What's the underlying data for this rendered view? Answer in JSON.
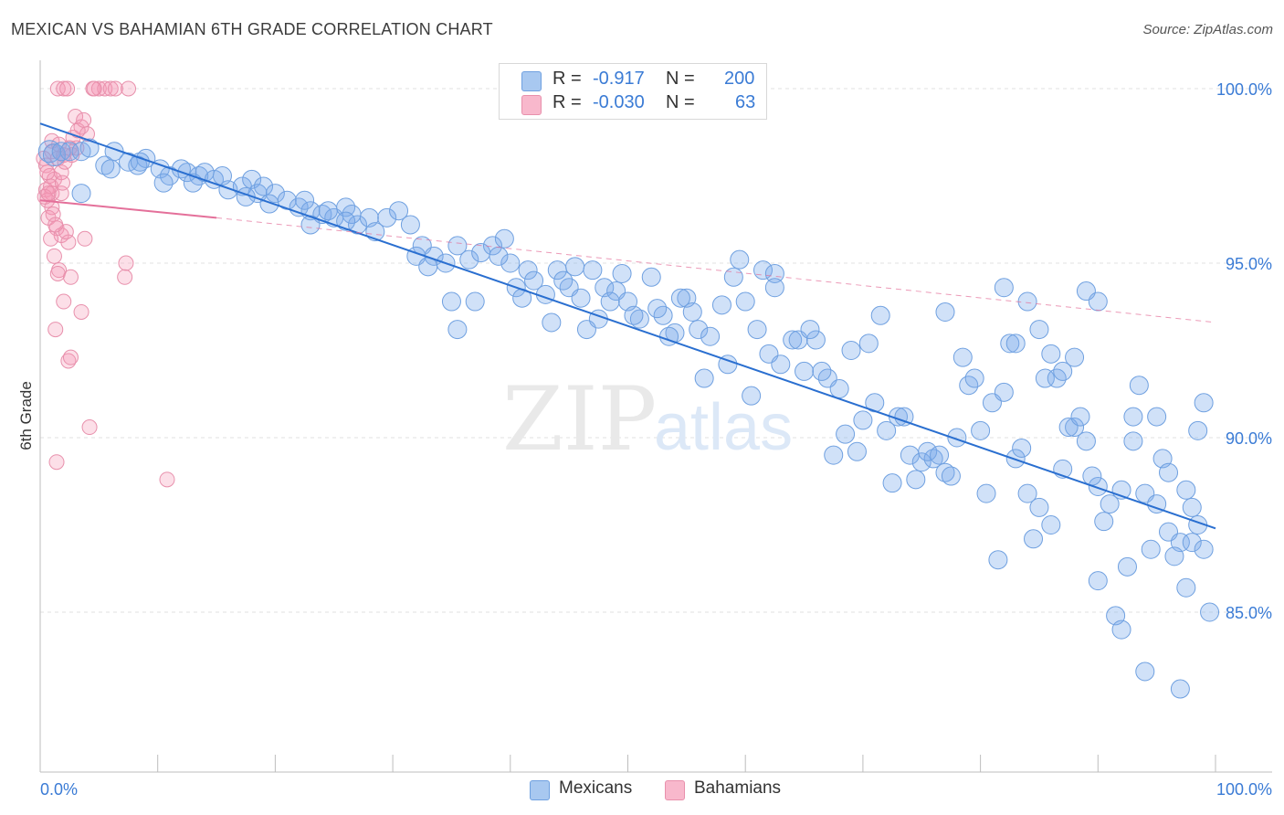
{
  "title": "MEXICAN VS BAHAMIAN 6TH GRADE CORRELATION CHART",
  "source": "Source: ZipAtlas.com",
  "watermark": {
    "zip": "ZIP",
    "atlas": "atlas"
  },
  "legend": {
    "r_label": "R =",
    "n_label": "N =",
    "rows": [
      {
        "r": "-0.917",
        "n": "200",
        "color": "#a8c8f0",
        "border": "#6fa0e0"
      },
      {
        "r": "-0.030",
        "n": "63",
        "color": "#f8b8cc",
        "border": "#e890ac"
      }
    ]
  },
  "bottom_legend": [
    {
      "label": "Mexicans",
      "color": "#a8c8f0",
      "border": "#6fa0e0"
    },
    {
      "label": "Bahamians",
      "color": "#f8b8cc",
      "border": "#e890ac"
    }
  ],
  "colors": {
    "blue_fill": "rgba(120,170,235,0.35)",
    "blue_stroke": "#6fa0e0",
    "blue_line": "#2a6fd0",
    "pink_fill": "rgba(245,150,180,0.30)",
    "pink_stroke": "#e890ac",
    "pink_line": "#e4709a",
    "tick_label": "#3a7bd5",
    "grid": "#e2e2e2"
  },
  "chart_data": {
    "type": "scatter",
    "title": "MEXICAN VS BAHAMIAN 6TH GRADE CORRELATION CHART",
    "xlabel": "",
    "ylabel": "6th Grade",
    "xlim": [
      0,
      100
    ],
    "ylim": [
      80.5,
      100.6
    ],
    "x_tick_labels": [
      "0.0%",
      "100.0%"
    ],
    "y_ticks": [
      100,
      95,
      90,
      85
    ],
    "y_tick_labels": [
      "100.0%",
      "95.0%",
      "90.0%",
      "85.0%"
    ],
    "grid": true,
    "legend_position": "top-center",
    "series": [
      {
        "name": "Mexicans",
        "r": -0.917,
        "n": 200,
        "trend": {
          "x": [
            0,
            100
          ],
          "y": [
            99.0,
            87.4
          ],
          "style": "solid"
        },
        "points": [
          [
            0.8,
            98.2
          ],
          [
            1.2,
            98.1
          ],
          [
            1.8,
            98.2
          ],
          [
            2.5,
            98.2
          ],
          [
            3.5,
            98.2
          ],
          [
            4.2,
            98.3
          ],
          [
            6.3,
            98.2
          ],
          [
            5.5,
            97.8
          ],
          [
            6.0,
            97.7
          ],
          [
            7.5,
            97.9
          ],
          [
            8.3,
            97.8
          ],
          [
            9.0,
            98.0
          ],
          [
            8.5,
            97.9
          ],
          [
            10.2,
            97.7
          ],
          [
            11.0,
            97.5
          ],
          [
            12.5,
            97.6
          ],
          [
            13.5,
            97.5
          ],
          [
            12.0,
            97.7
          ],
          [
            14.0,
            97.6
          ],
          [
            14.8,
            97.4
          ],
          [
            16.0,
            97.1
          ],
          [
            17.2,
            97.2
          ],
          [
            18.0,
            97.4
          ],
          [
            18.5,
            97.0
          ],
          [
            17.5,
            96.9
          ],
          [
            19.0,
            97.2
          ],
          [
            20.0,
            97.0
          ],
          [
            19.5,
            96.7
          ],
          [
            21.0,
            96.8
          ],
          [
            22.0,
            96.6
          ],
          [
            23.0,
            96.5
          ],
          [
            22.5,
            96.8
          ],
          [
            24.0,
            96.4
          ],
          [
            25.0,
            96.3
          ],
          [
            24.5,
            96.5
          ],
          [
            26.0,
            96.6
          ],
          [
            27.0,
            96.1
          ],
          [
            26.5,
            96.4
          ],
          [
            28.0,
            96.3
          ],
          [
            29.5,
            96.3
          ],
          [
            30.5,
            96.5
          ],
          [
            31.5,
            96.1
          ],
          [
            32.5,
            95.5
          ],
          [
            33.5,
            95.2
          ],
          [
            34.5,
            95.0
          ],
          [
            35.5,
            95.5
          ],
          [
            36.5,
            95.1
          ],
          [
            37.5,
            95.3
          ],
          [
            38.5,
            95.5
          ],
          [
            39.5,
            95.7
          ],
          [
            40.0,
            95.0
          ],
          [
            40.5,
            94.3
          ],
          [
            41.5,
            94.8
          ],
          [
            42.0,
            94.5
          ],
          [
            43.0,
            94.1
          ],
          [
            44.0,
            94.8
          ],
          [
            45.0,
            94.3
          ],
          [
            46.0,
            94.0
          ],
          [
            47.0,
            94.8
          ],
          [
            48.0,
            94.3
          ],
          [
            49.0,
            94.2
          ],
          [
            50.0,
            93.9
          ],
          [
            51.0,
            93.4
          ],
          [
            52.0,
            94.6
          ],
          [
            53.0,
            93.5
          ],
          [
            54.0,
            93.0
          ],
          [
            55.0,
            94.0
          ],
          [
            56.0,
            93.1
          ],
          [
            57.0,
            92.9
          ],
          [
            58.0,
            93.8
          ],
          [
            59.0,
            94.6
          ],
          [
            60.0,
            93.9
          ],
          [
            61.0,
            93.1
          ],
          [
            62.0,
            92.4
          ],
          [
            63.0,
            92.1
          ],
          [
            64.0,
            92.8
          ],
          [
            65.0,
            91.9
          ],
          [
            66.0,
            92.8
          ],
          [
            67.0,
            91.7
          ],
          [
            68.0,
            91.4
          ],
          [
            69.0,
            92.5
          ],
          [
            70.0,
            90.5
          ],
          [
            71.0,
            91.0
          ],
          [
            72.0,
            90.2
          ],
          [
            73.0,
            90.6
          ],
          [
            74.0,
            89.5
          ],
          [
            75.0,
            89.3
          ],
          [
            76.0,
            89.4
          ],
          [
            77.0,
            89.0
          ],
          [
            78.0,
            90.0
          ],
          [
            79.0,
            91.5
          ],
          [
            80.0,
            90.2
          ],
          [
            81.0,
            91.0
          ],
          [
            82.0,
            91.3
          ],
          [
            83.0,
            89.4
          ],
          [
            84.0,
            88.4
          ],
          [
            85.0,
            88.0
          ],
          [
            86.0,
            87.5
          ],
          [
            87.0,
            89.1
          ],
          [
            88.0,
            90.3
          ],
          [
            89.0,
            89.9
          ],
          [
            90.0,
            88.6
          ],
          [
            91.0,
            88.1
          ],
          [
            92.0,
            88.5
          ],
          [
            93.0,
            89.9
          ],
          [
            94.0,
            88.4
          ],
          [
            95.0,
            88.1
          ],
          [
            96.0,
            87.3
          ],
          [
            97.0,
            87.0
          ],
          [
            98.0,
            87.0
          ],
          [
            98.5,
            87.5
          ],
          [
            99.0,
            86.8
          ],
          [
            99.5,
            85.0
          ],
          [
            3.5,
            97.0
          ],
          [
            10.5,
            97.3
          ],
          [
            13.0,
            97.3
          ],
          [
            15.5,
            97.5
          ],
          [
            23.0,
            96.1
          ],
          [
            26.0,
            96.2
          ],
          [
            28.5,
            95.9
          ],
          [
            32.0,
            95.2
          ],
          [
            33.0,
            94.9
          ],
          [
            35.0,
            93.9
          ],
          [
            35.5,
            93.1
          ],
          [
            37.0,
            93.9
          ],
          [
            39.0,
            95.2
          ],
          [
            41.0,
            94.0
          ],
          [
            43.5,
            93.3
          ],
          [
            44.5,
            94.5
          ],
          [
            45.5,
            94.9
          ],
          [
            46.5,
            93.1
          ],
          [
            47.5,
            93.4
          ],
          [
            48.5,
            93.9
          ],
          [
            49.5,
            94.7
          ],
          [
            50.5,
            93.5
          ],
          [
            52.5,
            93.7
          ],
          [
            53.5,
            92.9
          ],
          [
            54.5,
            94.0
          ],
          [
            55.5,
            93.6
          ],
          [
            56.5,
            91.7
          ],
          [
            58.5,
            92.1
          ],
          [
            59.5,
            95.1
          ],
          [
            60.5,
            91.2
          ],
          [
            61.5,
            94.8
          ],
          [
            62.5,
            94.7
          ],
          [
            64.5,
            92.8
          ],
          [
            65.5,
            93.1
          ],
          [
            66.5,
            91.9
          ],
          [
            67.5,
            89.5
          ],
          [
            68.5,
            90.1
          ],
          [
            69.5,
            89.6
          ],
          [
            70.5,
            92.7
          ],
          [
            71.5,
            93.5
          ],
          [
            72.5,
            88.7
          ],
          [
            73.5,
            90.6
          ],
          [
            74.5,
            88.8
          ],
          [
            75.5,
            89.6
          ],
          [
            76.5,
            89.5
          ],
          [
            77.5,
            88.9
          ],
          [
            78.5,
            92.3
          ],
          [
            79.5,
            91.7
          ],
          [
            80.5,
            88.4
          ],
          [
            81.5,
            86.5
          ],
          [
            82.5,
            92.7
          ],
          [
            83.5,
            89.7
          ],
          [
            84.5,
            87.1
          ],
          [
            85.5,
            91.7
          ],
          [
            86.5,
            91.7
          ],
          [
            87.5,
            90.3
          ],
          [
            88.5,
            90.6
          ],
          [
            89.5,
            88.9
          ],
          [
            90.0,
            85.9
          ],
          [
            90.5,
            87.6
          ],
          [
            91.5,
            84.9
          ],
          [
            92.0,
            84.5
          ],
          [
            92.5,
            86.3
          ],
          [
            93.0,
            90.6
          ],
          [
            94.0,
            83.3
          ],
          [
            94.5,
            86.8
          ],
          [
            95.5,
            89.4
          ],
          [
            96.5,
            86.6
          ],
          [
            97.0,
            82.8
          ],
          [
            97.5,
            85.7
          ],
          [
            98.5,
            90.2
          ],
          [
            99.0,
            91.0
          ],
          [
            62.5,
            94.3
          ],
          [
            77.0,
            93.6
          ],
          [
            82.0,
            94.3
          ],
          [
            89.0,
            94.2
          ],
          [
            90.0,
            93.9
          ],
          [
            83.0,
            92.7
          ],
          [
            84.0,
            93.9
          ],
          [
            85.0,
            93.1
          ],
          [
            86.0,
            92.4
          ],
          [
            87.0,
            91.9
          ],
          [
            88.0,
            92.3
          ],
          [
            93.5,
            91.5
          ],
          [
            95.0,
            90.6
          ],
          [
            96.0,
            89.0
          ],
          [
            97.5,
            88.5
          ],
          [
            98.0,
            88.0
          ]
        ]
      },
      {
        "name": "Bahamians",
        "r": -0.03,
        "n": 63,
        "trend": {
          "x": [
            0,
            15
          ],
          "y": [
            96.8,
            96.3
          ],
          "style": "solid",
          "extension": {
            "x": [
              15,
              100
            ],
            "y": [
              96.3,
              93.3
            ],
            "style": "dashed"
          }
        },
        "points": [
          [
            1.5,
            100.0
          ],
          [
            2.0,
            100.0
          ],
          [
            2.3,
            100.0
          ],
          [
            4.5,
            100.0
          ],
          [
            5.0,
            100.0
          ],
          [
            5.5,
            100.0
          ],
          [
            6.0,
            100.0
          ],
          [
            7.5,
            100.0
          ],
          [
            3.0,
            99.2
          ],
          [
            3.5,
            98.9
          ],
          [
            2.8,
            98.6
          ],
          [
            4.0,
            98.7
          ],
          [
            1.0,
            98.2
          ],
          [
            1.5,
            98.0
          ],
          [
            2.0,
            98.1
          ],
          [
            0.5,
            97.8
          ],
          [
            0.8,
            97.5
          ],
          [
            1.2,
            97.4
          ],
          [
            0.5,
            97.1
          ],
          [
            1.0,
            97.0
          ],
          [
            1.8,
            97.0
          ],
          [
            0.6,
            96.8
          ],
          [
            1.0,
            96.6
          ],
          [
            0.7,
            96.3
          ],
          [
            1.4,
            96.0
          ],
          [
            1.8,
            95.8
          ],
          [
            0.9,
            95.7
          ],
          [
            2.4,
            95.6
          ],
          [
            3.8,
            95.7
          ],
          [
            1.2,
            95.2
          ],
          [
            1.6,
            94.8
          ],
          [
            2.6,
            94.6
          ],
          [
            7.3,
            95.0
          ],
          [
            7.2,
            94.6
          ],
          [
            1.5,
            94.7
          ],
          [
            2.0,
            93.9
          ],
          [
            3.5,
            93.6
          ],
          [
            1.3,
            93.1
          ],
          [
            2.4,
            92.2
          ],
          [
            2.6,
            92.3
          ],
          [
            4.2,
            90.3
          ],
          [
            1.4,
            89.3
          ],
          [
            10.8,
            88.8
          ],
          [
            1.0,
            98.5
          ],
          [
            2.5,
            98.3
          ],
          [
            3.2,
            98.8
          ],
          [
            1.8,
            97.6
          ],
          [
            0.9,
            97.2
          ],
          [
            0.4,
            96.9
          ],
          [
            1.1,
            96.4
          ],
          [
            2.2,
            95.9
          ],
          [
            0.6,
            97.6
          ],
          [
            1.9,
            97.3
          ],
          [
            2.7,
            98.1
          ],
          [
            3.7,
            99.1
          ],
          [
            4.6,
            100.0
          ],
          [
            6.4,
            100.0
          ],
          [
            0.3,
            98.0
          ],
          [
            1.6,
            98.4
          ],
          [
            2.1,
            97.9
          ],
          [
            0.7,
            97.0
          ],
          [
            1.3,
            96.1
          ],
          [
            3.1,
            98.3
          ]
        ]
      }
    ]
  }
}
